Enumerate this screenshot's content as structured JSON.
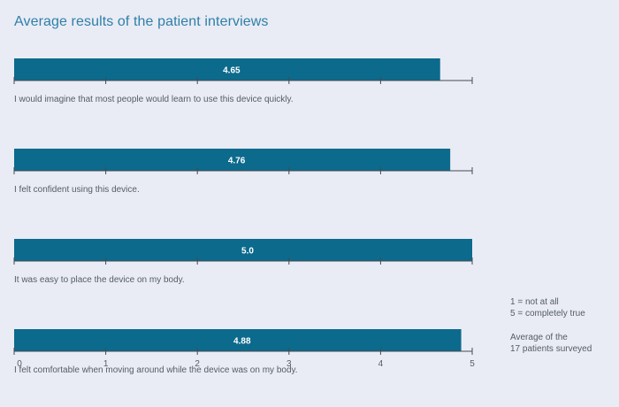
{
  "page": {
    "title": "Average results of the patient interviews"
  },
  "legend": {
    "scale_lines": [
      "1 = not at all",
      "5 = completely true"
    ],
    "note_lines": [
      "Average of the",
      "17 patients surveyed"
    ]
  },
  "colors": {
    "bar": "#0c6a8c",
    "axis": "#444a52",
    "background": "#e9ecf5",
    "title": "#2f7fa8"
  },
  "chart_data": {
    "type": "bar",
    "orientation": "horizontal",
    "xlim": [
      0,
      5
    ],
    "ticks": [
      0,
      1,
      2,
      3,
      4,
      5
    ],
    "categories": [
      "I would imagine that most people would learn to use this device quickly.",
      "I felt confident using this device.",
      "It was easy to place the device on my body.",
      "I felt comfortable when moving around while the device was on my body."
    ],
    "values": [
      4.65,
      4.76,
      5.0,
      4.88
    ],
    "value_labels": [
      "4.65",
      "4.76",
      "5.0",
      "4.88"
    ],
    "grid": false
  }
}
